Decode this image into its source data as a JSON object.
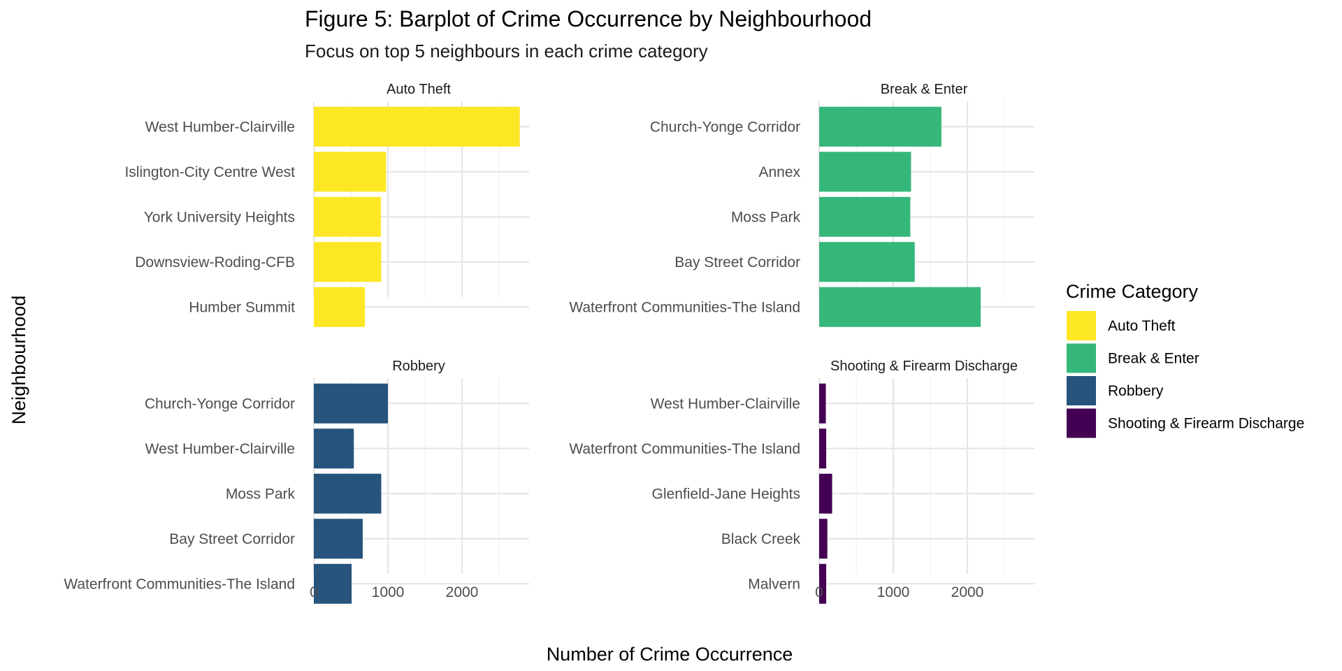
{
  "chart_data": {
    "type": "bar",
    "orientation": "horizontal",
    "faceted": true,
    "title": "Figure 5: Barplot of Crime Occurrence by Neighbourhood",
    "subtitle": "Focus on top 5 neighbours in each crime category",
    "xlabel": "Number of Crime Occurrence",
    "ylabel": "Neighbourhood",
    "xlim": [
      0,
      2900
    ],
    "x_ticks": [
      "0",
      "1000",
      "2000"
    ],
    "x_tick_values": [
      0,
      1000,
      2000
    ],
    "grid": true,
    "legend": {
      "title": "Crime Category",
      "position": "right",
      "entries": [
        {
          "label": "Auto Theft",
          "color": "#FDE725"
        },
        {
          "label": "Break & Enter",
          "color": "#35B779"
        },
        {
          "label": "Robbery",
          "color": "#26547C"
        },
        {
          "label": "Shooting & Firearm Discharge",
          "color": "#440154"
        }
      ]
    },
    "panels": [
      {
        "name": "Auto Theft",
        "color": "#FDE725",
        "categories": [
          "West Humber-Clairville",
          "Islington-City Centre West",
          "York University Heights",
          "Downsview-Roding-CFB",
          "Humber Summit"
        ],
        "values": [
          2780,
          975,
          905,
          910,
          690
        ]
      },
      {
        "name": "Break & Enter",
        "color": "#35B779",
        "categories": [
          "Church-Yonge Corridor",
          "Annex",
          "Moss Park",
          "Bay Street Corridor",
          "Waterfront Communities-The Island"
        ],
        "values": [
          1650,
          1240,
          1230,
          1290,
          2180
        ]
      },
      {
        "name": "Robbery",
        "color": "#26547C",
        "categories": [
          "Church-Yonge Corridor",
          "West Humber-Clairville",
          "Moss Park",
          "Bay Street Corridor",
          "Waterfront Communities-The Island"
        ],
        "values": [
          1000,
          540,
          910,
          660,
          510
        ]
      },
      {
        "name": "Shooting & Firearm Discharge",
        "color": "#440154",
        "categories": [
          "West Humber-Clairville",
          "Waterfront Communities-The Island",
          "Glenfield-Jane Heights",
          "Black Creek",
          "Malvern"
        ],
        "values": [
          90,
          95,
          175,
          110,
          95
        ]
      }
    ]
  }
}
